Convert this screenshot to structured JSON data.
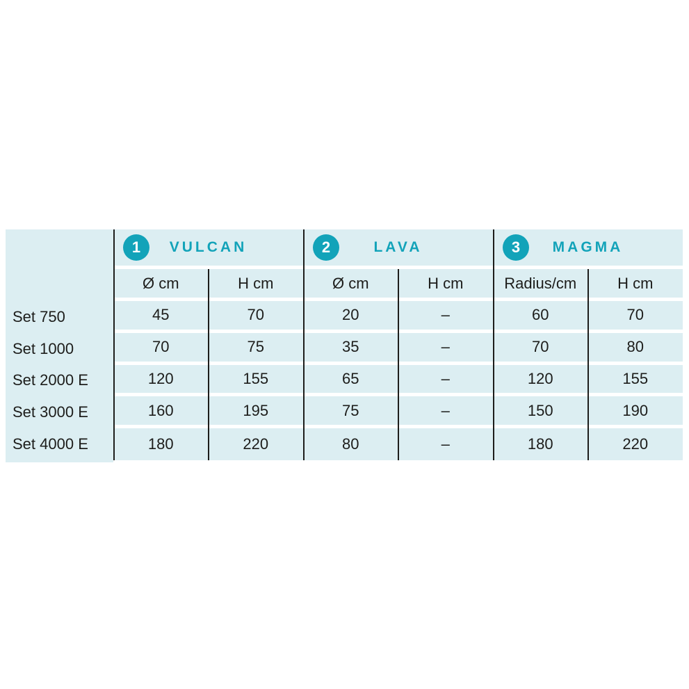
{
  "table": {
    "sections": [
      {
        "badge": "1",
        "name": "VULCAN",
        "columns": [
          "Ø cm",
          "H cm"
        ]
      },
      {
        "badge": "2",
        "name": "LAVA",
        "columns": [
          "Ø cm",
          "H cm"
        ]
      },
      {
        "badge": "3",
        "name": "MAGMA",
        "columns": [
          "Radius/cm",
          "H cm"
        ]
      }
    ],
    "rows": [
      {
        "label": "Set 750",
        "values": [
          "45",
          "70",
          "20",
          "–",
          "60",
          "70"
        ]
      },
      {
        "label": "Set 1000",
        "values": [
          "70",
          "75",
          "35",
          "–",
          "70",
          "80"
        ]
      },
      {
        "label": "Set 2000 E",
        "values": [
          "120",
          "155",
          "65",
          "–",
          "120",
          "155"
        ]
      },
      {
        "label": "Set 3000 E",
        "values": [
          "160",
          "195",
          "75",
          "–",
          "150",
          "190"
        ]
      },
      {
        "label": "Set 4000 E",
        "values": [
          "180",
          "220",
          "80",
          "–",
          "180",
          "220"
        ]
      }
    ],
    "colors": {
      "accent_teal": "#12a3b9",
      "table_background": "#dceef2",
      "text": "#1d1d1b",
      "row_separator": "#ffffff",
      "divider_line": "#1d1d1b"
    }
  }
}
